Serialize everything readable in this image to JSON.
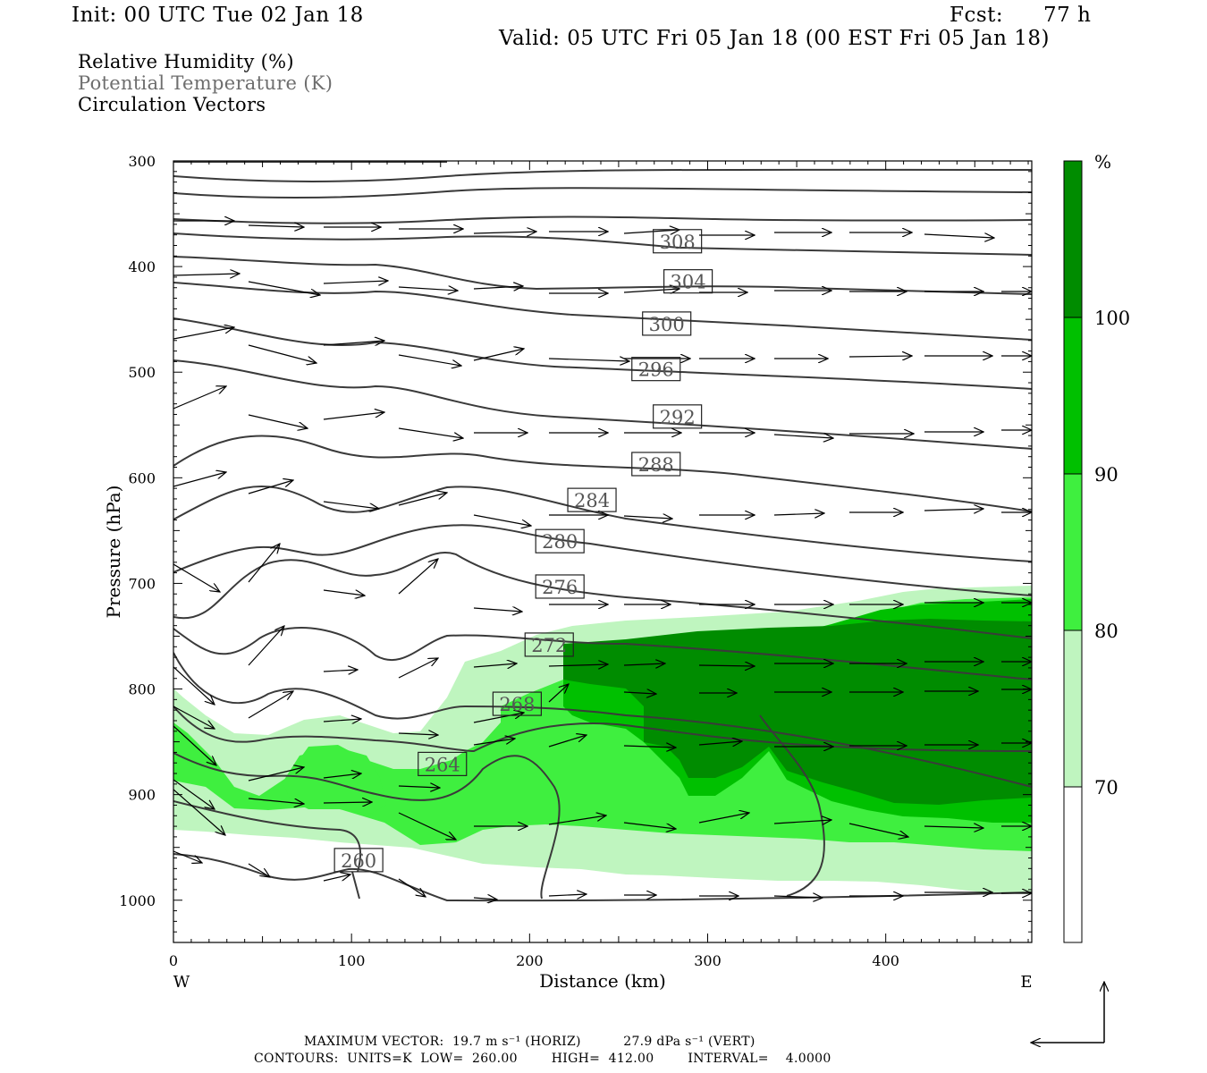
{
  "header": {
    "init": "Init: 00 UTC Tue 02 Jan 18",
    "fcst_label": "Fcst:",
    "fcst_value": "77 h",
    "valid": "Valid: 05 UTC Fri 05 Jan 18 (00 EST Fri 05 Jan 18)"
  },
  "legend": {
    "rh": "Relative Humidity (%)",
    "theta": "Potential Temperature (K)",
    "vectors": "Circulation Vectors"
  },
  "footer": {
    "line1": "MAXIMUM VECTOR:  19.7 m s⁻¹ (HORIZ)          27.9 dPa s⁻¹ (VERT)",
    "line2": "CONTOURS:  UNITS=K  LOW=  260.00        HIGH=  412.00        INTERVAL=    4.0000"
  },
  "colors": {
    "rh_70_80": "#bff5bf",
    "rh_80_90": "#3fef3f",
    "rh_90_100": "#00c000",
    "rh_100": "#008c00",
    "contour": "#3a3a3a",
    "vector": "#000000"
  },
  "chart_data": {
    "type": "cross-section",
    "xlabel": "Distance (km)",
    "ylabel": "Pressure (hPa)",
    "xlim": [
      0,
      482
    ],
    "ylim": [
      1040,
      300
    ],
    "x_ticks": [
      "0",
      "100",
      "200",
      "300",
      "400"
    ],
    "y_ticks": [
      "300",
      "400",
      "500",
      "600",
      "700",
      "800",
      "900",
      "1000"
    ],
    "x_end_labels": {
      "left": "W",
      "right": "E"
    },
    "colorbar": {
      "unit": "%",
      "levels": [
        "70",
        "80",
        "90",
        "100"
      ],
      "bands": [
        {
          "range": "<70",
          "color": "#ffffff"
        },
        {
          "range": "70-80",
          "color": "#bff5bf"
        },
        {
          "range": "80-90",
          "color": "#3fef3f"
        },
        {
          "range": "90-100",
          "color": "#00c000"
        },
        {
          "range": ">100",
          "color": "#008c00"
        }
      ]
    },
    "contour_labels": [
      "308",
      "304",
      "300",
      "296",
      "292",
      "288",
      "284",
      "280",
      "276",
      "272",
      "268",
      "264",
      "260"
    ],
    "theta_contours": [
      {
        "label": "308",
        "x": 283,
        "y": 376
      },
      {
        "label": "304",
        "x": 289,
        "y": 414
      },
      {
        "label": "300",
        "x": 277,
        "y": 454
      },
      {
        "label": "296",
        "x": 271,
        "y": 497
      },
      {
        "label": "292",
        "x": 283,
        "y": 542
      },
      {
        "label": "288",
        "x": 271,
        "y": 587
      },
      {
        "label": "284",
        "x": 235,
        "y": 621
      },
      {
        "label": "280",
        "x": 217,
        "y": 660
      },
      {
        "label": "276",
        "x": 217,
        "y": 703
      },
      {
        "label": "272",
        "x": 211,
        "y": 758
      },
      {
        "label": "268",
        "x": 193,
        "y": 814
      },
      {
        "label": "264",
        "x": 151,
        "y": 871
      },
      {
        "label": "260",
        "x": 104,
        "y": 962
      }
    ]
  }
}
